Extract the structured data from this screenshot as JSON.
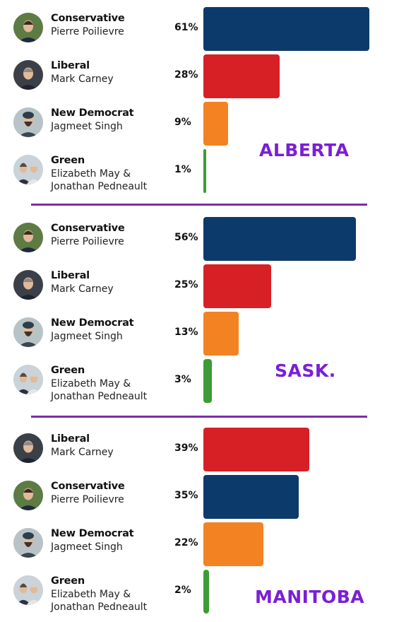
{
  "colors": {
    "Conservative": "#0c3a6b",
    "Liberal": "#d71f26",
    "New Democrat": "#f38322",
    "Green": "#3d9b35",
    "province_label": "#7a1fd6",
    "divider": "#7d2fa8"
  },
  "chart_data": [
    {
      "type": "bar",
      "orientation": "horizontal",
      "title": "ALBERTA",
      "xlim": [
        0,
        68
      ],
      "categories": [
        "Conservative",
        "Liberal",
        "New Democrat",
        "Green"
      ],
      "leaders": [
        "Pierre Poilievre",
        "Mark Carney",
        "Jagmeet Singh",
        "Elizabeth May & Jonathan Pedneault"
      ],
      "values": [
        61,
        28,
        9,
        1
      ],
      "labels": [
        "61%",
        "28%",
        "9%",
        "1%"
      ]
    },
    {
      "type": "bar",
      "orientation": "horizontal",
      "title": "SASK.",
      "xlim": [
        0,
        68
      ],
      "categories": [
        "Conservative",
        "Liberal",
        "New Democrat",
        "Green"
      ],
      "leaders": [
        "Pierre Poilievre",
        "Mark Carney",
        "Jagmeet Singh",
        "Elizabeth May & Jonathan Pedneault"
      ],
      "values": [
        56,
        25,
        13,
        3
      ],
      "labels": [
        "56%",
        "25%",
        "13%",
        "3%"
      ]
    },
    {
      "type": "bar",
      "orientation": "horizontal",
      "title": "MANITOBA",
      "xlim": [
        0,
        68
      ],
      "categories": [
        "Liberal",
        "Conservative",
        "New Democrat",
        "Green"
      ],
      "leaders": [
        "Mark Carney",
        "Pierre Poilievre",
        "Jagmeet Singh",
        "Elizabeth May & Jonathan Pedneault"
      ],
      "values": [
        39,
        35,
        22,
        2
      ],
      "labels": [
        "39%",
        "35%",
        "22%",
        "2%"
      ]
    }
  ],
  "avatars": {
    "Conservative": "pierre-poilievre-photo",
    "Liberal": "mark-carney-photo",
    "New Democrat": "jagmeet-singh-photo",
    "Green": "may-pedneault-photo"
  }
}
